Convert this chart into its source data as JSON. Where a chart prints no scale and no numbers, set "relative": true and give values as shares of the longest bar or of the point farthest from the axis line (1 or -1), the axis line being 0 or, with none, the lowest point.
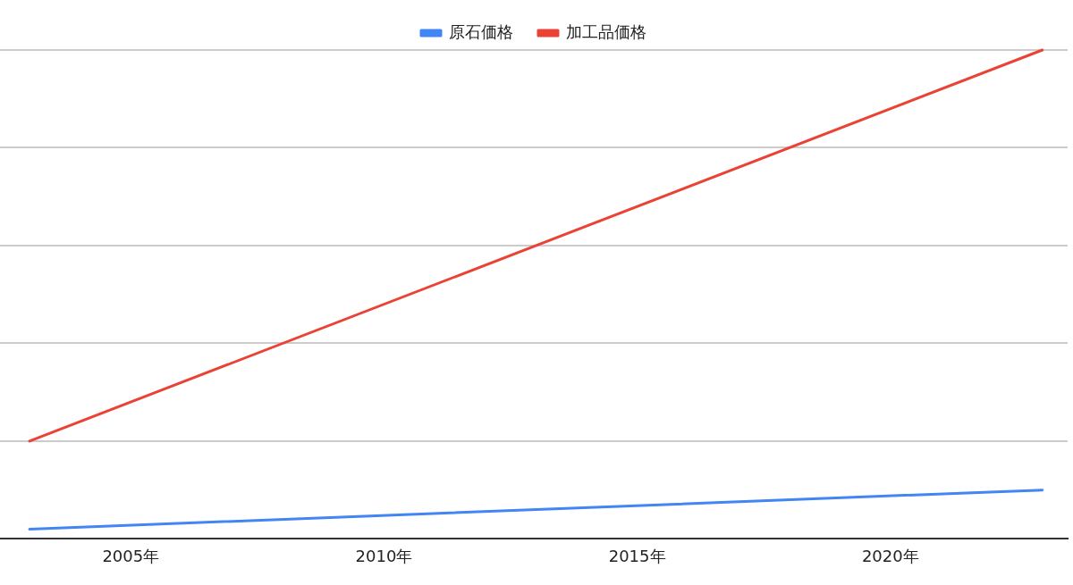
{
  "chart_data": {
    "type": "line",
    "relative": true,
    "legend": "top",
    "grid": "y",
    "marker": "none",
    "line_style": "solid",
    "xlim": [
      "2002-06",
      "2023-07"
    ],
    "xticks": [
      {
        "value": "2005",
        "label": "2005年"
      },
      {
        "value": "2010",
        "label": "2010年"
      },
      {
        "value": "2015",
        "label": "2015年"
      },
      {
        "value": "2020",
        "label": "2020年"
      }
    ],
    "series": [
      {
        "name": "原石価格",
        "color": "#4285f4",
        "x": [
          "2003",
          "2023"
        ],
        "values": [
          0.02,
          0.1
        ]
      },
      {
        "name": "加工品価格",
        "color": "#ea4335",
        "x": [
          "2003",
          "2023"
        ],
        "values": [
          0.2,
          1
        ]
      }
    ]
  }
}
